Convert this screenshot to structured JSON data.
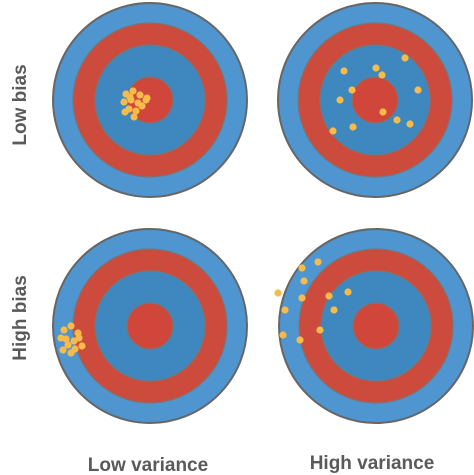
{
  "row_labels": [
    "Low bias",
    "High bias"
  ],
  "column_labels": [
    "Low variance",
    "High variance"
  ]
}
